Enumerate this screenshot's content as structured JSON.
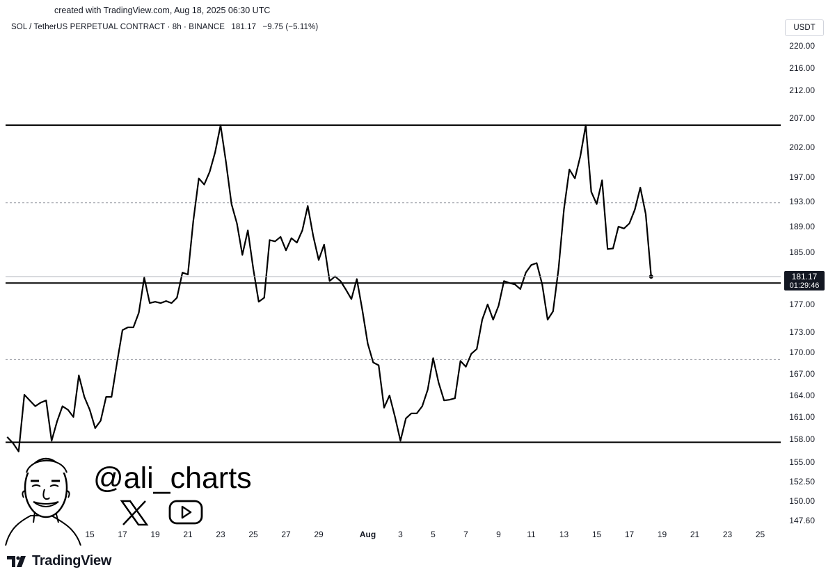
{
  "header": {
    "caption": "created with TradingView.com, Aug 18, 2025 06:30 UTC",
    "symbol": "SOL / TetherUS PERPETUAL CONTRACT · 8h · BINANCE",
    "last_price": "181.17",
    "change": "−9.75 (−5.11%)",
    "currency": "USDT"
  },
  "watermark": {
    "handle": "@ali_charts",
    "icons": [
      "avatar-caricature",
      "x-logo-icon",
      "youtube-icon"
    ]
  },
  "brand": {
    "name": "TradingView"
  },
  "price_tag": {
    "price": "181.17",
    "countdown": "01:29:46"
  },
  "colors": {
    "line": "#000000",
    "accent_tag": "#131722",
    "grid_dashed": "#9598a1"
  },
  "chart_data": {
    "type": "line",
    "title": "",
    "xlabel": "",
    "ylabel": "",
    "ylim": [
      146,
      222
    ],
    "y_ticks": [
      "220.00",
      "216.00",
      "212.00",
      "207.00",
      "202.00",
      "197.00",
      "193.00",
      "189.00",
      "185.00",
      "177.00",
      "173.00",
      "170.00",
      "167.00",
      "164.00",
      "161.00",
      "158.00",
      "155.00",
      "152.50",
      "150.00",
      "147.60"
    ],
    "x_ticks": [
      {
        "label": "11",
        "d": 0
      },
      {
        "label": "13",
        "d": 2
      },
      {
        "label": "15",
        "d": 4
      },
      {
        "label": "17",
        "d": 6
      },
      {
        "label": "19",
        "d": 8
      },
      {
        "label": "21",
        "d": 10
      },
      {
        "label": "23",
        "d": 12
      },
      {
        "label": "25",
        "d": 14
      },
      {
        "label": "27",
        "d": 16
      },
      {
        "label": "29",
        "d": 18
      },
      {
        "label": "Aug",
        "d": 21
      },
      {
        "label": "3",
        "d": 23
      },
      {
        "label": "5",
        "d": 25
      },
      {
        "label": "7",
        "d": 27
      },
      {
        "label": "9",
        "d": 29
      },
      {
        "label": "11",
        "d": 31
      },
      {
        "label": "13",
        "d": 33
      },
      {
        "label": "15",
        "d": 35
      },
      {
        "label": "17",
        "d": 37
      },
      {
        "label": "19",
        "d": 39
      },
      {
        "label": "21",
        "d": 41
      },
      {
        "label": "23",
        "d": 43
      },
      {
        "label": "25",
        "d": 45
      }
    ],
    "levels": [
      {
        "price": 205.8,
        "style": "solid"
      },
      {
        "price": 192.8,
        "style": "dashed"
      },
      {
        "price": 180.2,
        "style": "solid"
      },
      {
        "price": 169.0,
        "style": "dashed"
      },
      {
        "price": 157.6,
        "style": "solid"
      }
    ],
    "series": [
      {
        "values": [
          [
            -1.05,
            158.3
          ],
          [
            -0.7,
            157.5
          ],
          [
            -0.35,
            156.4
          ],
          [
            0.0,
            164.1
          ],
          [
            0.33,
            163.3
          ],
          [
            0.67,
            162.5
          ],
          [
            1.0,
            163.0
          ],
          [
            1.33,
            163.3
          ],
          [
            1.67,
            157.8
          ],
          [
            2.0,
            160.4
          ],
          [
            2.33,
            162.5
          ],
          [
            2.67,
            162.0
          ],
          [
            3.0,
            161.0
          ],
          [
            3.33,
            166.8
          ],
          [
            3.67,
            163.8
          ],
          [
            4.0,
            162.0
          ],
          [
            4.33,
            159.5
          ],
          [
            4.67,
            160.5
          ],
          [
            5.0,
            163.8
          ],
          [
            5.33,
            163.8
          ],
          [
            5.67,
            168.6
          ],
          [
            6.0,
            173.3
          ],
          [
            6.33,
            173.7
          ],
          [
            6.67,
            173.7
          ],
          [
            7.0,
            175.8
          ],
          [
            7.33,
            181.0
          ],
          [
            7.67,
            177.2
          ],
          [
            8.0,
            177.4
          ],
          [
            8.33,
            177.2
          ],
          [
            8.67,
            177.5
          ],
          [
            9.0,
            177.2
          ],
          [
            9.33,
            178.0
          ],
          [
            9.67,
            181.8
          ],
          [
            10.0,
            181.5
          ],
          [
            10.33,
            189.9
          ],
          [
            10.67,
            196.8
          ],
          [
            11.0,
            195.8
          ],
          [
            11.33,
            197.9
          ],
          [
            11.67,
            201.2
          ],
          [
            12.0,
            205.8
          ],
          [
            12.33,
            199.5
          ],
          [
            12.67,
            192.6
          ],
          [
            13.0,
            189.5
          ],
          [
            13.33,
            184.6
          ],
          [
            13.67,
            188.4
          ],
          [
            14.0,
            182.4
          ],
          [
            14.33,
            177.4
          ],
          [
            14.67,
            178.0
          ],
          [
            15.0,
            186.9
          ],
          [
            15.33,
            186.7
          ],
          [
            15.67,
            187.4
          ],
          [
            16.0,
            185.3
          ],
          [
            16.33,
            187.2
          ],
          [
            16.67,
            186.5
          ],
          [
            17.0,
            188.4
          ],
          [
            17.33,
            192.3
          ],
          [
            17.67,
            187.5
          ],
          [
            18.0,
            183.8
          ],
          [
            18.33,
            186.2
          ],
          [
            18.67,
            180.5
          ],
          [
            19.0,
            181.2
          ],
          [
            19.33,
            180.5
          ],
          [
            19.67,
            179.2
          ],
          [
            20.0,
            177.8
          ],
          [
            20.33,
            180.8
          ],
          [
            20.67,
            176.2
          ],
          [
            21.0,
            171.3
          ],
          [
            21.33,
            168.6
          ],
          [
            21.67,
            168.2
          ],
          [
            22.0,
            162.3
          ],
          [
            22.33,
            164.0
          ],
          [
            22.67,
            161.0
          ],
          [
            23.0,
            157.8
          ],
          [
            23.33,
            160.8
          ],
          [
            23.67,
            161.5
          ],
          [
            24.0,
            161.5
          ],
          [
            24.33,
            162.5
          ],
          [
            24.67,
            164.8
          ],
          [
            25.0,
            169.2
          ],
          [
            25.33,
            165.8
          ],
          [
            25.67,
            163.3
          ],
          [
            26.0,
            163.4
          ],
          [
            26.33,
            163.6
          ],
          [
            26.67,
            168.8
          ],
          [
            27.0,
            168.0
          ],
          [
            27.33,
            169.8
          ],
          [
            27.67,
            170.5
          ],
          [
            28.0,
            174.8
          ],
          [
            28.33,
            177.0
          ],
          [
            28.67,
            174.8
          ],
          [
            29.0,
            176.8
          ],
          [
            29.33,
            180.5
          ],
          [
            29.67,
            180.2
          ],
          [
            30.0,
            180.0
          ],
          [
            30.33,
            179.3
          ],
          [
            30.67,
            181.8
          ],
          [
            31.0,
            183.0
          ],
          [
            31.33,
            183.3
          ],
          [
            31.67,
            180.0
          ],
          [
            32.0,
            174.8
          ],
          [
            32.33,
            176.0
          ],
          [
            32.67,
            182.4
          ],
          [
            33.0,
            191.8
          ],
          [
            33.33,
            198.3
          ],
          [
            33.67,
            196.8
          ],
          [
            34.0,
            200.5
          ],
          [
            34.33,
            205.8
          ],
          [
            34.67,
            194.6
          ],
          [
            35.0,
            192.6
          ],
          [
            35.33,
            196.5
          ],
          [
            35.67,
            185.5
          ],
          [
            36.0,
            185.6
          ],
          [
            36.33,
            189.0
          ],
          [
            36.67,
            188.7
          ],
          [
            37.0,
            189.5
          ],
          [
            37.33,
            191.7
          ],
          [
            37.67,
            195.3
          ],
          [
            38.0,
            191.0
          ],
          [
            38.33,
            181.17
          ]
        ]
      }
    ]
  }
}
